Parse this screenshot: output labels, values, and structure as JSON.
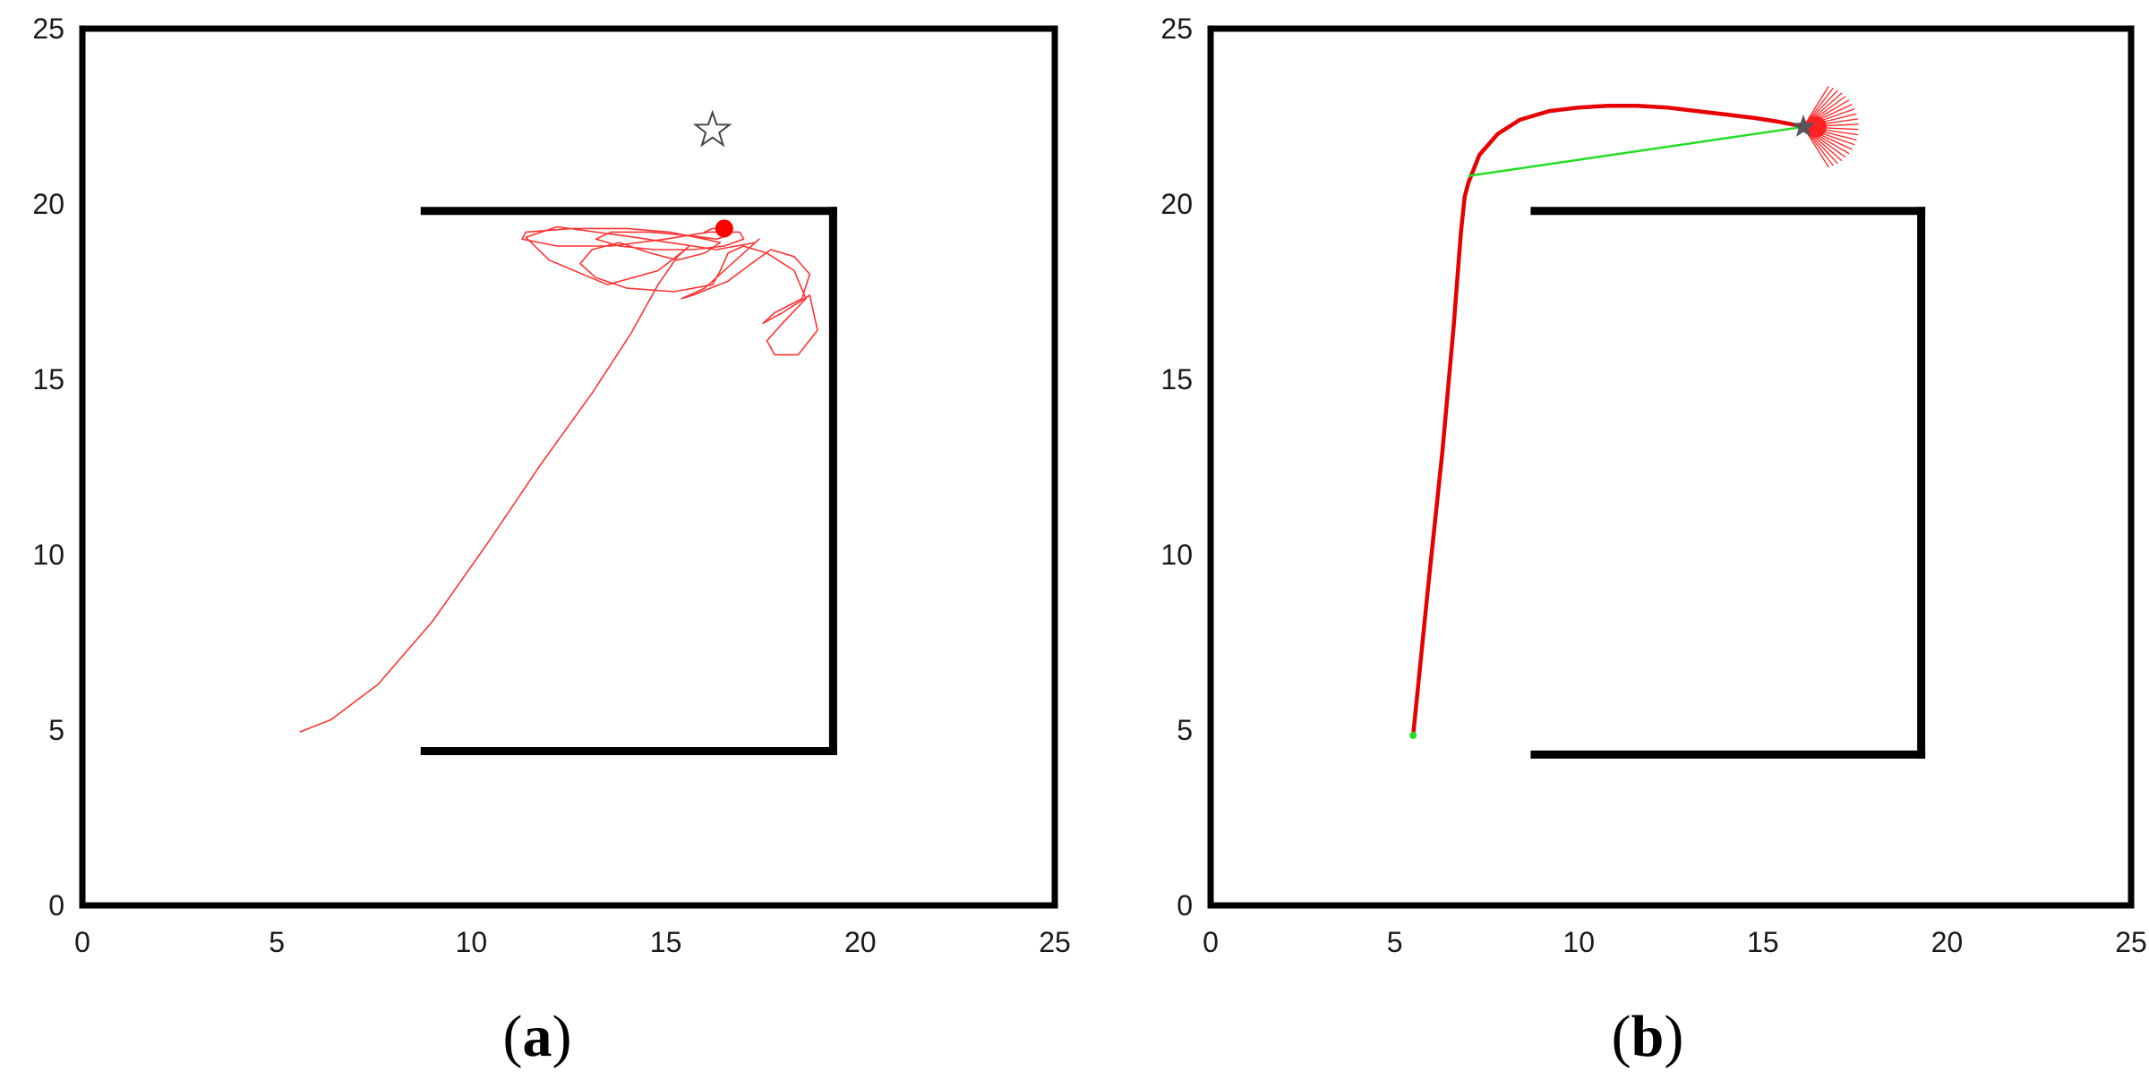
{
  "chart_data": [
    {
      "type": "line",
      "label": "(a)",
      "label_letter": "a",
      "xlim": [
        0,
        25
      ],
      "ylim": [
        0,
        25
      ],
      "x_ticks": [
        "0",
        "5",
        "10",
        "15",
        "20",
        "25"
      ],
      "y_ticks": [
        "0",
        "5",
        "10",
        "15",
        "20",
        "25"
      ],
      "grid": false,
      "colors": {
        "walls": "#000000",
        "path": "#ff3333",
        "marker": "#ff0000",
        "goal": "#444444"
      },
      "walls": [
        {
          "x": [
            8.8,
            19.3
          ],
          "y": [
            19.8,
            19.8
          ]
        },
        {
          "x": [
            19.3,
            19.3
          ],
          "y": [
            19.8,
            4.4
          ]
        },
        {
          "x": [
            19.3,
            8.8
          ],
          "y": [
            4.4,
            4.4
          ]
        }
      ],
      "goal": {
        "x": 16.2,
        "y": 22.1,
        "marker": "star-outline"
      },
      "end_point": {
        "x": 16.5,
        "y": 19.3
      },
      "path": {
        "x": [
          5.6,
          6.4,
          7.6,
          9.0,
          10.4,
          11.8,
          13.1,
          14.1,
          14.8,
          15.3,
          15.6,
          15.5,
          14.8,
          13.5,
          12.0,
          11.4,
          12.2,
          14.2,
          16.3,
          17.3,
          17.4,
          16.8,
          16.0,
          15.4,
          15.7,
          16.6,
          17.2,
          17.7,
          18.3,
          18.7,
          18.5,
          17.8,
          17.5,
          18.0,
          18.7,
          18.9,
          18.4,
          17.8,
          17.6,
          18.0,
          18.6,
          18.3,
          17.6,
          17.0,
          16.6,
          16.4,
          16.2,
          15.2,
          14.0,
          13.2,
          12.8,
          13.1,
          13.8,
          14.6,
          15.3,
          16.0,
          16.4,
          16.0,
          15.1,
          14.0,
          12.6,
          11.4,
          11.3,
          12.2,
          13.6,
          15.0,
          16.1,
          16.9,
          17.0,
          16.5,
          15.7,
          14.7,
          13.8,
          13.2,
          13.6,
          14.6,
          15.6,
          16.3,
          16.6,
          16.5,
          16.2,
          16.0
        ],
        "y": [
          4.95,
          5.3,
          6.3,
          8.1,
          10.3,
          12.6,
          14.6,
          16.3,
          17.7,
          18.5,
          18.8,
          18.7,
          18.1,
          17.7,
          18.4,
          19.05,
          19.35,
          19.05,
          18.7,
          18.9,
          19.0,
          18.4,
          17.6,
          17.3,
          17.4,
          17.8,
          18.3,
          18.7,
          18.5,
          18.0,
          17.3,
          16.9,
          16.6,
          16.9,
          17.4,
          16.4,
          15.7,
          15.7,
          16.1,
          16.6,
          17.3,
          18.1,
          18.6,
          18.8,
          18.6,
          18.1,
          17.7,
          17.5,
          17.6,
          17.9,
          18.3,
          18.7,
          18.9,
          18.6,
          18.4,
          18.6,
          18.9,
          19.0,
          19.2,
          19.3,
          19.3,
          19.2,
          19.0,
          18.8,
          18.8,
          19.0,
          19.2,
          19.2,
          19.0,
          18.8,
          18.7,
          18.7,
          18.8,
          19.0,
          19.2,
          19.2,
          19.1,
          19.0,
          19.1,
          19.3,
          19.3,
          19.2
        ]
      }
    },
    {
      "type": "line",
      "label": "(b)",
      "label_letter": "b",
      "xlim": [
        0,
        25
      ],
      "ylim": [
        0,
        25
      ],
      "x_ticks": [
        "0",
        "5",
        "10",
        "15",
        "20",
        "25"
      ],
      "y_ticks": [
        "0",
        "5",
        "10",
        "15",
        "20",
        "25"
      ],
      "grid": false,
      "colors": {
        "walls": "#000000",
        "path": "#e60000",
        "shortcut": "#22dd22",
        "rays": "#ff2222",
        "goal": "#555555"
      },
      "walls": [
        {
          "x": [
            8.8,
            19.3
          ],
          "y": [
            19.8,
            19.8
          ]
        },
        {
          "x": [
            19.3,
            19.3
          ],
          "y": [
            19.8,
            4.3
          ]
        },
        {
          "x": [
            19.3,
            8.8
          ],
          "y": [
            4.3,
            4.3
          ]
        }
      ],
      "start": {
        "x": 5.5,
        "y": 4.85
      },
      "goal": {
        "x": 16.1,
        "y": 22.2,
        "marker": "star"
      },
      "path": {
        "x": [
          5.5,
          5.9,
          6.3,
          6.6,
          6.8,
          6.9,
          7.0,
          7.3,
          7.8,
          8.4,
          9.2,
          10.0,
          10.8,
          11.6,
          12.4,
          13.2,
          14.0,
          14.8,
          15.4,
          15.9,
          16.1
        ],
        "y": [
          4.85,
          9.0,
          13.0,
          16.5,
          19.2,
          20.2,
          20.6,
          21.4,
          22.0,
          22.4,
          22.65,
          22.75,
          22.8,
          22.8,
          22.75,
          22.65,
          22.55,
          22.45,
          22.35,
          22.25,
          22.2
        ]
      },
      "shortcut": {
        "x": [
          7.0,
          16.1
        ],
        "y": [
          20.8,
          22.2
        ]
      },
      "rays": {
        "origin": {
          "x": 16.1,
          "y": 22.2
        },
        "count": 22,
        "length": 1.5,
        "angle_range_deg": [
          -58,
          58
        ]
      }
    }
  ]
}
